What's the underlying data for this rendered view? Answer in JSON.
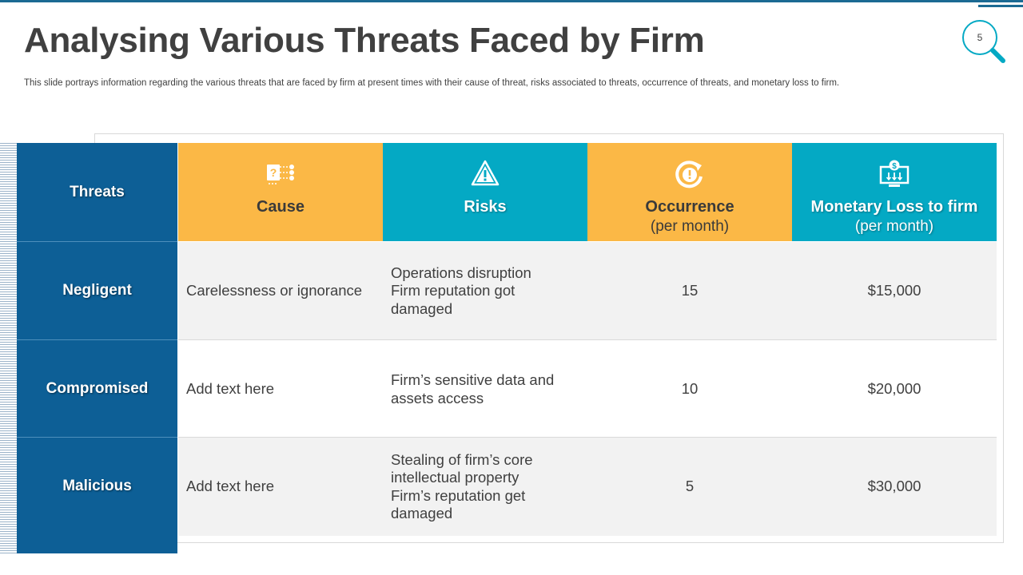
{
  "slide": {
    "title": "Analysing Various Threats Faced by Firm",
    "subtitle": "This slide portrays information  regarding the various  threats that are faced by firm at present times with their cause of threat, risks associated to threats, occurrence of threats, and monetary loss to firm.",
    "page_number": "5"
  },
  "table": {
    "headers": {
      "threats": "Threats",
      "cause": {
        "label": "Cause",
        "icon": "question-network-icon"
      },
      "risks": {
        "label": "Risks",
        "icon": "warning-triangle-icon"
      },
      "occurrence": {
        "label": "Occurrence",
        "sub": "(per month)",
        "icon": "alert-refresh-icon"
      },
      "monetary_loss": {
        "label": "Monetary Loss to firm",
        "sub": "(per month)",
        "icon": "dollar-monitor-icon"
      }
    },
    "rows": [
      {
        "threat": "Negligent",
        "cause": "Carelessness or ignorance",
        "risks": [
          "Operations disruption",
          "Firm reputation got damaged"
        ],
        "occurrence": "15",
        "monetary_loss": "$15,000"
      },
      {
        "threat": "Compromised",
        "cause": "Add text here",
        "risks": [
          "Firm’s sensitive data and assets access"
        ],
        "occurrence": "10",
        "monetary_loss": "$20,000"
      },
      {
        "threat": "Malicious",
        "cause": "Add text here",
        "risks": [
          "Stealing of firm’s core intellectual property",
          "Firm’s reputation get damaged"
        ],
        "occurrence": "5",
        "monetary_loss": "$30,000"
      }
    ]
  },
  "colors": {
    "navy": "#0d5f96",
    "orange": "#fbb846",
    "teal": "#04a9c4",
    "row_shade": "#f2f2f2",
    "title_text": "#404040"
  }
}
